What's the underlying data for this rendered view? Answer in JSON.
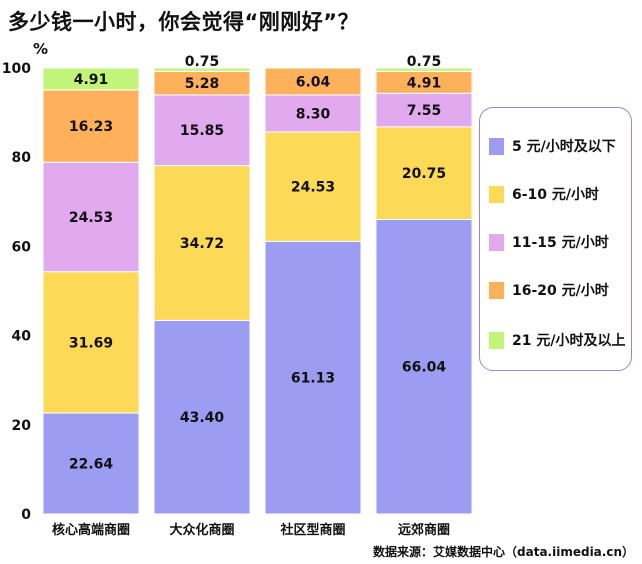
{
  "title": "多少钱一小时，你会觉得“刚刚好”？",
  "source": "数据来源：艾媒数据中心（data.iimedia.cn）",
  "colors": {
    "5 元/小时及以下": "#9b9cf2",
    "6-10 元/小时": "#fcd957",
    "11-15 元/小时": "#e2aaee",
    "16-20 元/小时": "#ffb05a",
    "21 元/小时及以上": "#c2f47a"
  },
  "chart_data": {
    "type": "bar",
    "stacked": true,
    "ylabel": "%",
    "ylim": [
      0,
      100
    ],
    "yticks": [
      0,
      20,
      40,
      60,
      80,
      100
    ],
    "grid": false,
    "legend_position": "right",
    "categories": [
      "核心高端商圈",
      "大众化商圈",
      "社区型商圈",
      "远郊商圈"
    ],
    "series": [
      {
        "name": "5 元/小时及以下",
        "values": [
          22.64,
          43.4,
          61.13,
          66.04
        ]
      },
      {
        "name": "6-10 元/小时",
        "values": [
          31.69,
          34.72,
          24.53,
          20.75
        ]
      },
      {
        "name": "11-15 元/小时",
        "values": [
          24.53,
          15.85,
          8.3,
          7.55
        ]
      },
      {
        "name": "16-20 元/小时",
        "values": [
          16.23,
          5.28,
          6.04,
          4.91
        ]
      },
      {
        "name": "21 元/小时及以上",
        "values": [
          4.91,
          0.75,
          null,
          0.75
        ]
      }
    ]
  }
}
